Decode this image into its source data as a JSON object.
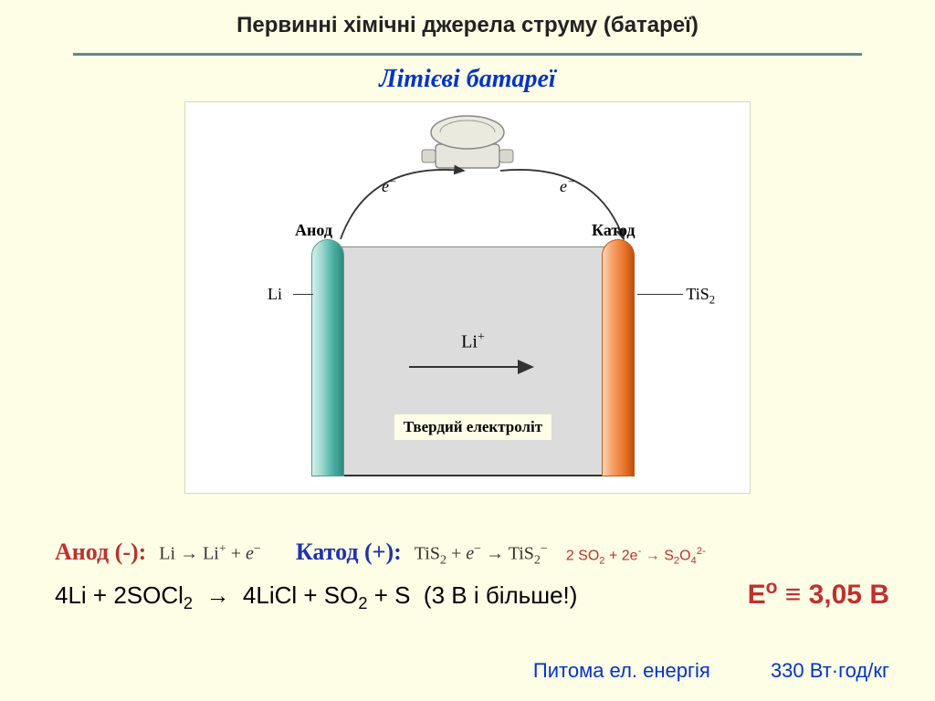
{
  "page": {
    "title": "Первинні хімічні джерела струму (батареї)",
    "subtitle": "Літієві батареї",
    "divider_color": "#5a8a9a",
    "background": "#fefee6"
  },
  "diagram": {
    "anode_label": "Анод",
    "cathode_label": "Катод",
    "anode_material": "Li",
    "cathode_material": "TiS",
    "cathode_material_sub": "2",
    "electron_label": "e",
    "electron_sup": "−",
    "ion_label": "Li",
    "ion_sup": "+",
    "electrolyte_label": "Твердий електроліт",
    "anode_color_stops": [
      "#d4f0ea",
      "#9ed9cf",
      "#55b9ab",
      "#2e8a7c"
    ],
    "cathode_color_stops": [
      "#fbd6b8",
      "#f7a26a",
      "#e8742a",
      "#c14f0d"
    ],
    "electrolyte_fill": "#dcdcdc",
    "diagram_bg": "#ffffff"
  },
  "reactions": {
    "anode_heading": "Анод (-):",
    "anode_rxn_html": "Li → Li<sup>+</sup> + <i>e</i><sup>−</sup>",
    "cathode_heading": "Катод (+):",
    "cathode_rxn_html": "TiS<sub>2</sub> + <i>e</i><sup>−</sup> → TiS<sub>2</sub><sup>−</sup>",
    "extra_rxn_html": "2 SO<sub>2</sub> + 2e<sup>-</sup> → S<sub>2</sub>O<sub>4</sub><sup>2-</sup>",
    "overall_rxn_html": "4Li + 2SOCl<sub>2</sub>&nbsp;&nbsp;→&nbsp;&nbsp;4LiCl + SO<sub>2</sub> + S&nbsp;&nbsp;(3 В і більше!)",
    "emf_html": "E<sup>o</sup> ≡ 3,05 В",
    "anode_heading_color": "#c03030",
    "cathode_heading_color": "#2030b0",
    "emf_color": "#c03030"
  },
  "footer": {
    "label": "Питома ел. енергія",
    "value": "330 Вт·год/кг",
    "color": "#0033cc"
  }
}
